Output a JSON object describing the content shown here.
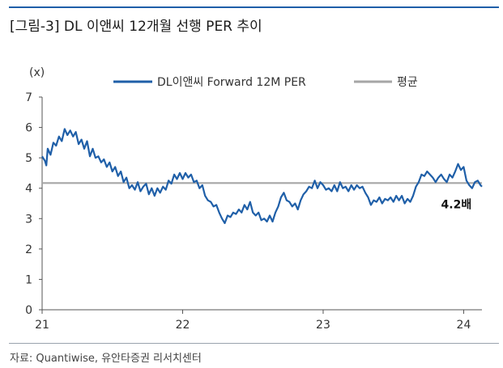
{
  "header": {
    "title": "[그림-3] DL 이앤씨 12개월 선행 PER 추이"
  },
  "source": {
    "text": "자료: Quantiwise, 유안타증권 리서치센터"
  },
  "chart_data": {
    "type": "line",
    "title": "[그림-3] DL 이앤씨 12개월 선행 PER 추이",
    "ylabel": "(x)",
    "xlabel": "",
    "ylim": [
      0,
      7
    ],
    "yticks": [
      "0",
      "1",
      "2",
      "3",
      "4",
      "5",
      "6",
      "7"
    ],
    "xlim": [
      2021.0,
      2024.13
    ],
    "xticks": [
      {
        "value": 2021,
        "label": "21"
      },
      {
        "value": 2022,
        "label": "22"
      },
      {
        "value": 2023,
        "label": "23"
      },
      {
        "value": 2024,
        "label": "24"
      }
    ],
    "grid": false,
    "legend_position": "top",
    "series": [
      {
        "name": "DL이앤씨 Forward 12M PER",
        "color": "#1f5fa8",
        "points": [
          [
            2021.0,
            5.05
          ],
          [
            2021.02,
            4.9
          ],
          [
            2021.03,
            4.75
          ],
          [
            2021.04,
            5.3
          ],
          [
            2021.06,
            5.1
          ],
          [
            2021.08,
            5.5
          ],
          [
            2021.1,
            5.4
          ],
          [
            2021.12,
            5.7
          ],
          [
            2021.14,
            5.55
          ],
          [
            2021.16,
            5.95
          ],
          [
            2021.18,
            5.75
          ],
          [
            2021.2,
            5.9
          ],
          [
            2021.22,
            5.7
          ],
          [
            2021.24,
            5.85
          ],
          [
            2021.26,
            5.45
          ],
          [
            2021.28,
            5.6
          ],
          [
            2021.3,
            5.3
          ],
          [
            2021.32,
            5.55
          ],
          [
            2021.34,
            5.05
          ],
          [
            2021.36,
            5.3
          ],
          [
            2021.38,
            5.0
          ],
          [
            2021.4,
            5.05
          ],
          [
            2021.42,
            4.85
          ],
          [
            2021.44,
            4.95
          ],
          [
            2021.46,
            4.7
          ],
          [
            2021.48,
            4.85
          ],
          [
            2021.5,
            4.55
          ],
          [
            2021.52,
            4.7
          ],
          [
            2021.54,
            4.4
          ],
          [
            2021.56,
            4.55
          ],
          [
            2021.58,
            4.2
          ],
          [
            2021.6,
            4.35
          ],
          [
            2021.62,
            4.0
          ],
          [
            2021.64,
            4.1
          ],
          [
            2021.66,
            3.95
          ],
          [
            2021.68,
            4.2
          ],
          [
            2021.7,
            3.9
          ],
          [
            2021.72,
            4.05
          ],
          [
            2021.74,
            4.15
          ],
          [
            2021.76,
            3.8
          ],
          [
            2021.78,
            4.0
          ],
          [
            2021.8,
            3.75
          ],
          [
            2021.82,
            4.0
          ],
          [
            2021.84,
            3.85
          ],
          [
            2021.86,
            4.05
          ],
          [
            2021.88,
            3.95
          ],
          [
            2021.9,
            4.25
          ],
          [
            2021.92,
            4.15
          ],
          [
            2021.94,
            4.45
          ],
          [
            2021.96,
            4.3
          ],
          [
            2021.98,
            4.5
          ],
          [
            2022.0,
            4.3
          ],
          [
            2022.02,
            4.5
          ],
          [
            2022.04,
            4.35
          ],
          [
            2022.06,
            4.45
          ],
          [
            2022.08,
            4.2
          ],
          [
            2022.1,
            4.25
          ],
          [
            2022.12,
            4.0
          ],
          [
            2022.14,
            4.1
          ],
          [
            2022.16,
            3.75
          ],
          [
            2022.18,
            3.6
          ],
          [
            2022.2,
            3.55
          ],
          [
            2022.22,
            3.4
          ],
          [
            2022.24,
            3.45
          ],
          [
            2022.26,
            3.2
          ],
          [
            2022.28,
            3.0
          ],
          [
            2022.3,
            2.85
          ],
          [
            2022.32,
            3.1
          ],
          [
            2022.34,
            3.05
          ],
          [
            2022.36,
            3.2
          ],
          [
            2022.38,
            3.15
          ],
          [
            2022.4,
            3.3
          ],
          [
            2022.42,
            3.2
          ],
          [
            2022.44,
            3.45
          ],
          [
            2022.46,
            3.3
          ],
          [
            2022.48,
            3.55
          ],
          [
            2022.5,
            3.2
          ],
          [
            2022.52,
            3.1
          ],
          [
            2022.54,
            3.2
          ],
          [
            2022.56,
            2.95
          ],
          [
            2022.58,
            3.0
          ],
          [
            2022.6,
            2.9
          ],
          [
            2022.62,
            3.1
          ],
          [
            2022.64,
            2.9
          ],
          [
            2022.66,
            3.2
          ],
          [
            2022.68,
            3.4
          ],
          [
            2022.7,
            3.7
          ],
          [
            2022.72,
            3.85
          ],
          [
            2022.74,
            3.6
          ],
          [
            2022.76,
            3.55
          ],
          [
            2022.78,
            3.4
          ],
          [
            2022.8,
            3.5
          ],
          [
            2022.82,
            3.3
          ],
          [
            2022.84,
            3.6
          ],
          [
            2022.86,
            3.8
          ],
          [
            2022.88,
            3.9
          ],
          [
            2022.9,
            4.05
          ],
          [
            2022.92,
            4.0
          ],
          [
            2022.94,
            4.25
          ],
          [
            2022.96,
            4.0
          ],
          [
            2022.98,
            4.2
          ],
          [
            2023.0,
            4.1
          ],
          [
            2023.02,
            3.95
          ],
          [
            2023.04,
            4.0
          ],
          [
            2023.06,
            3.9
          ],
          [
            2023.08,
            4.1
          ],
          [
            2023.1,
            3.9
          ],
          [
            2023.12,
            4.2
          ],
          [
            2023.14,
            4.0
          ],
          [
            2023.16,
            4.05
          ],
          [
            2023.18,
            3.9
          ],
          [
            2023.2,
            4.1
          ],
          [
            2023.22,
            3.95
          ],
          [
            2023.24,
            4.1
          ],
          [
            2023.26,
            4.0
          ],
          [
            2023.28,
            4.05
          ],
          [
            2023.3,
            3.85
          ],
          [
            2023.32,
            3.7
          ],
          [
            2023.34,
            3.45
          ],
          [
            2023.36,
            3.6
          ],
          [
            2023.38,
            3.55
          ],
          [
            2023.4,
            3.7
          ],
          [
            2023.42,
            3.5
          ],
          [
            2023.44,
            3.65
          ],
          [
            2023.46,
            3.6
          ],
          [
            2023.48,
            3.7
          ],
          [
            2023.5,
            3.55
          ],
          [
            2023.52,
            3.75
          ],
          [
            2023.54,
            3.6
          ],
          [
            2023.56,
            3.75
          ],
          [
            2023.58,
            3.5
          ],
          [
            2023.6,
            3.65
          ],
          [
            2023.62,
            3.55
          ],
          [
            2023.64,
            3.75
          ],
          [
            2023.66,
            4.05
          ],
          [
            2023.68,
            4.2
          ],
          [
            2023.7,
            4.45
          ],
          [
            2023.72,
            4.4
          ],
          [
            2023.74,
            4.55
          ],
          [
            2023.76,
            4.45
          ],
          [
            2023.78,
            4.35
          ],
          [
            2023.8,
            4.2
          ],
          [
            2023.82,
            4.35
          ],
          [
            2023.84,
            4.45
          ],
          [
            2023.86,
            4.3
          ],
          [
            2023.88,
            4.2
          ],
          [
            2023.9,
            4.45
          ],
          [
            2023.92,
            4.35
          ],
          [
            2023.94,
            4.55
          ],
          [
            2023.96,
            4.8
          ],
          [
            2023.98,
            4.6
          ],
          [
            2024.0,
            4.7
          ],
          [
            2024.02,
            4.25
          ],
          [
            2024.04,
            4.1
          ],
          [
            2024.06,
            4.0
          ],
          [
            2024.08,
            4.2
          ],
          [
            2024.1,
            4.25
          ],
          [
            2024.12,
            4.1
          ],
          [
            2024.13,
            4.05
          ]
        ]
      },
      {
        "name": "평균",
        "color": "#a6a6a6",
        "constant": 4.17
      }
    ],
    "annotations": [
      {
        "text": "4.2배",
        "x": 2023.89,
        "y": 3.5
      }
    ]
  }
}
